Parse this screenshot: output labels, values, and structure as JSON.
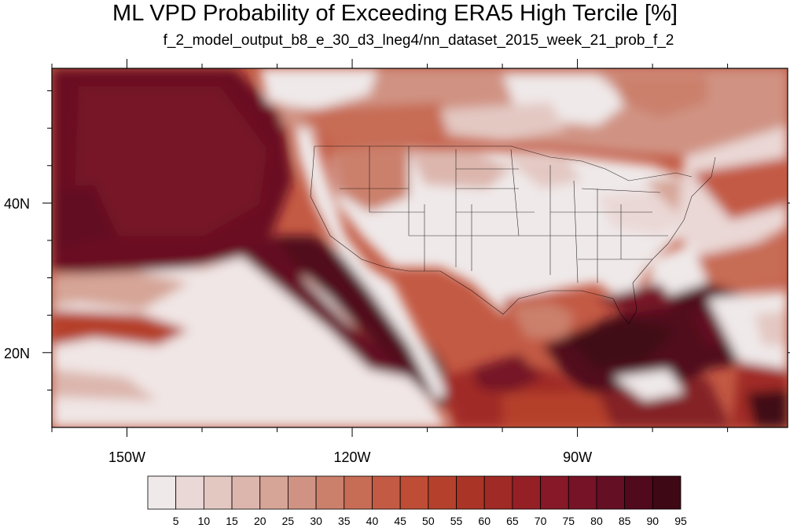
{
  "title": "ML VPD Probability of Exceeding ERA5 High Tercile [%]",
  "subtitle": "f_2_model_output_b8_e_30_d3_lneg4/nn_dataset_2015_week_21_prob_f_2",
  "map": {
    "lon_range": [
      -160,
      -62
    ],
    "lat_range": [
      10,
      58
    ],
    "lon_ticks": [
      {
        "value": -150,
        "label": "150W"
      },
      {
        "value": -120,
        "label": "120W"
      },
      {
        "value": -90,
        "label": "90W"
      }
    ],
    "lat_ticks": [
      {
        "value": 40,
        "label": "40N"
      },
      {
        "value": 20,
        "label": "20N"
      }
    ]
  },
  "colorbar": {
    "colors": [
      "#efe9e9",
      "#ead8d6",
      "#e3c8c2",
      "#dcb6ad",
      "#d6a597",
      "#d09383",
      "#cb806c",
      "#c76c55",
      "#c35a44",
      "#bf4c35",
      "#b5412c",
      "#aa3426",
      "#a02a25",
      "#942026",
      "#861827",
      "#761326",
      "#640f23",
      "#51091c",
      "#3f0815"
    ],
    "labels": [
      "5",
      "10",
      "15",
      "20",
      "25",
      "30",
      "35",
      "40",
      "45",
      "50",
      "55",
      "60",
      "65",
      "70",
      "75",
      "80",
      "85",
      "90",
      "95"
    ]
  }
}
